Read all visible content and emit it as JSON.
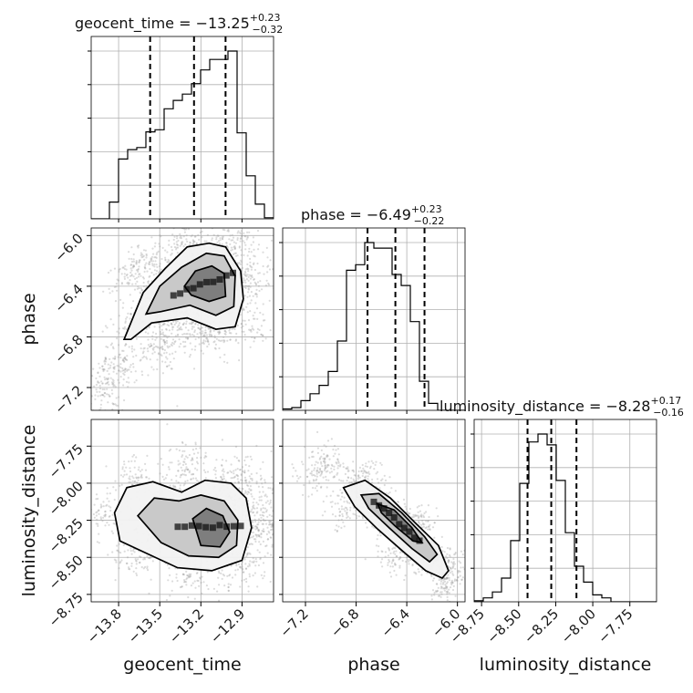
{
  "chart_data": {
    "type": "corner",
    "parameters": [
      "geocent_time",
      "phase",
      "luminosity_distance"
    ],
    "titles": [
      {
        "param": "geocent_time",
        "prefix": "geocent_time = ",
        "median": "−13.25",
        "plus": "+0.23",
        "minus": "−0.32"
      },
      {
        "param": "phase",
        "prefix": "phase = ",
        "median": "−6.49",
        "plus": "+0.23",
        "minus": "−0.22"
      },
      {
        "param": "luminosity_distance",
        "prefix": "luminosity_distance = ",
        "median": "−8.28",
        "plus": "+0.17",
        "minus": "−0.16"
      }
    ],
    "axis_labels": {
      "x": [
        "geocent_time",
        "phase",
        "luminosity_distance"
      ],
      "y": [
        "phase",
        "luminosity_distance"
      ]
    },
    "ranges": {
      "geocent_time": [
        -14.0,
        -12.67
      ],
      "phase": [
        -7.38,
        -5.94
      ],
      "luminosity_distance": [
        -8.8,
        -7.57
      ]
    },
    "ticks": {
      "geocent_time": [
        -13.8,
        -13.5,
        -13.2,
        -12.9
      ],
      "phase": [
        -7.2,
        -6.8,
        -6.4,
        -6.0
      ],
      "luminosity_distance": [
        -8.75,
        -8.5,
        -8.25,
        -8.0,
        -7.75
      ]
    },
    "tick_labels": {
      "geocent_time": [
        "−13.8",
        "−13.5",
        "−13.2",
        "−12.9"
      ],
      "phase": [
        "−7.2",
        "−6.8",
        "−6.4",
        "−6.0"
      ],
      "luminosity_distance": [
        "−8.75",
        "−8.50",
        "−8.25",
        "−8.00",
        "−7.75"
      ]
    },
    "quantiles": {
      "geocent_time": [
        -13.57,
        -13.25,
        -13.02
      ],
      "phase": [
        -6.71,
        -6.49,
        -6.26
      ],
      "luminosity_distance": [
        -8.44,
        -8.28,
        -8.11
      ]
    },
    "histograms": {
      "geocent_time": {
        "edges_range": [
          -14.0,
          -12.67
        ],
        "bins": 20,
        "counts": [
          0,
          0,
          16,
          57,
          66,
          68,
          83,
          85,
          105,
          113,
          119,
          129,
          142,
          152,
          152,
          160,
          82,
          41,
          14,
          1
        ]
      },
      "phase": {
        "edges_range": [
          -7.38,
          -5.94
        ],
        "bins": 20,
        "counts": [
          1,
          2,
          7,
          12,
          18,
          28,
          50,
          101,
          105,
          121,
          117,
          117,
          98,
          90,
          64,
          21,
          5,
          0,
          0,
          0
        ]
      },
      "luminosity_distance": {
        "edges_range": [
          -8.8,
          -7.57
        ],
        "bins": 20,
        "counts": [
          1,
          4,
          10,
          24,
          62,
          120,
          162,
          170,
          159,
          123,
          70,
          36,
          20,
          7,
          4,
          0,
          0,
          0,
          0,
          0
        ]
      }
    },
    "densities": [
      {
        "x": "geocent_time",
        "y": "phase",
        "center": [
          -13.25,
          -6.44
        ],
        "cov": [
          [
            0.058,
            0.022
          ],
          [
            0.022,
            0.058
          ]
        ],
        "scatter_halo": [
          [
            -13.8,
            -7.0
          ],
          [
            -13.7,
            -6.3
          ],
          [
            -13.6,
            -6.2
          ],
          [
            -13.3,
            -6.05
          ],
          [
            -13.0,
            -6.05
          ],
          [
            -12.85,
            -6.35
          ],
          [
            -12.85,
            -6.7
          ],
          [
            -13.1,
            -6.8
          ],
          [
            -13.5,
            -6.9
          ],
          [
            -13.85,
            -7.1
          ],
          [
            -13.9,
            -7.25
          ]
        ],
        "contours": [
          [
            [
              -13.76,
              -6.82
            ],
            [
              -13.62,
              -6.45
            ],
            [
              -13.46,
              -6.26
            ],
            [
              -13.3,
              -6.09
            ],
            [
              -13.14,
              -6.06
            ],
            [
              -13.02,
              -6.09
            ],
            [
              -12.91,
              -6.28
            ],
            [
              -12.89,
              -6.5
            ],
            [
              -12.95,
              -6.72
            ],
            [
              -13.09,
              -6.74
            ],
            [
              -13.3,
              -6.65
            ],
            [
              -13.56,
              -6.69
            ],
            [
              -13.71,
              -6.82
            ]
          ],
          [
            [
              -13.6,
              -6.62
            ],
            [
              -13.5,
              -6.4
            ],
            [
              -13.34,
              -6.25
            ],
            [
              -13.16,
              -6.14
            ],
            [
              -13.03,
              -6.16
            ],
            [
              -12.95,
              -6.32
            ],
            [
              -12.96,
              -6.56
            ],
            [
              -13.09,
              -6.63
            ],
            [
              -13.28,
              -6.55
            ],
            [
              -13.49,
              -6.6
            ],
            [
              -13.6,
              -6.62
            ]
          ],
          [
            [
              -13.32,
              -6.4
            ],
            [
              -13.24,
              -6.28
            ],
            [
              -13.12,
              -6.24
            ],
            [
              -13.03,
              -6.3
            ],
            [
              -13.02,
              -6.48
            ],
            [
              -13.14,
              -6.52
            ],
            [
              -13.27,
              -6.47
            ],
            [
              -13.32,
              -6.4
            ]
          ]
        ]
      },
      {
        "x": "geocent_time",
        "y": "luminosity_distance",
        "center": [
          -13.15,
          -8.25
        ],
        "cov": [
          [
            0.065,
            0.0
          ],
          [
            0.0,
            0.032
          ]
        ],
        "scatter_halo": [
          [
            -13.9,
            -8.2
          ],
          [
            -13.7,
            -7.95
          ],
          [
            -13.3,
            -7.85
          ],
          [
            -12.9,
            -7.95
          ],
          [
            -12.75,
            -8.25
          ],
          [
            -12.9,
            -8.55
          ],
          [
            -13.3,
            -8.62
          ],
          [
            -13.7,
            -8.5
          ]
        ],
        "contours": [
          [
            [
              -13.83,
              -8.2
            ],
            [
              -13.74,
              -8.03
            ],
            [
              -13.55,
              -7.99
            ],
            [
              -13.34,
              -8.06
            ],
            [
              -13.17,
              -7.98
            ],
            [
              -12.98,
              -8.0
            ],
            [
              -12.87,
              -8.1
            ],
            [
              -12.83,
              -8.3
            ],
            [
              -12.9,
              -8.52
            ],
            [
              -13.12,
              -8.59
            ],
            [
              -13.37,
              -8.57
            ],
            [
              -13.58,
              -8.48
            ],
            [
              -13.79,
              -8.39
            ],
            [
              -13.83,
              -8.2
            ]
          ],
          [
            [
              -13.66,
              -8.22
            ],
            [
              -13.54,
              -8.1
            ],
            [
              -13.36,
              -8.12
            ],
            [
              -13.2,
              -8.08
            ],
            [
              -13.03,
              -8.12
            ],
            [
              -12.93,
              -8.25
            ],
            [
              -12.94,
              -8.42
            ],
            [
              -13.07,
              -8.5
            ],
            [
              -13.29,
              -8.49
            ],
            [
              -13.49,
              -8.4
            ],
            [
              -13.66,
              -8.22
            ]
          ],
          [
            [
              -13.26,
              -8.24
            ],
            [
              -13.16,
              -8.17
            ],
            [
              -13.04,
              -8.22
            ],
            [
              -12.99,
              -8.33
            ],
            [
              -13.06,
              -8.43
            ],
            [
              -13.2,
              -8.42
            ],
            [
              -13.26,
              -8.24
            ]
          ]
        ]
      },
      {
        "x": "phase",
        "y": "luminosity_distance",
        "center": [
          -6.46,
          -8.3
        ],
        "cov": [
          [
            0.04,
            -0.03
          ],
          [
            -0.03,
            0.028
          ]
        ],
        "scatter_halo": [
          [
            -7.05,
            -7.85
          ],
          [
            -6.7,
            -7.95
          ],
          [
            -6.3,
            -8.25
          ],
          [
            -6.05,
            -8.55
          ],
          [
            -6.1,
            -8.7
          ],
          [
            -6.5,
            -8.5
          ],
          [
            -6.9,
            -8.2
          ],
          [
            -7.15,
            -7.95
          ]
        ],
        "contours": [
          [
            [
              -6.9,
              -8.03
            ],
            [
              -6.73,
              -7.98
            ],
            [
              -6.53,
              -8.1
            ],
            [
              -6.33,
              -8.27
            ],
            [
              -6.15,
              -8.42
            ],
            [
              -6.07,
              -8.59
            ],
            [
              -6.12,
              -8.64
            ],
            [
              -6.25,
              -8.59
            ],
            [
              -6.43,
              -8.46
            ],
            [
              -6.63,
              -8.31
            ],
            [
              -6.81,
              -8.16
            ],
            [
              -6.9,
              -8.03
            ]
          ],
          [
            [
              -6.76,
              -8.08
            ],
            [
              -6.62,
              -8.07
            ],
            [
              -6.44,
              -8.2
            ],
            [
              -6.26,
              -8.36
            ],
            [
              -6.16,
              -8.48
            ],
            [
              -6.22,
              -8.53
            ],
            [
              -6.36,
              -8.44
            ],
            [
              -6.54,
              -8.3
            ],
            [
              -6.7,
              -8.17
            ],
            [
              -6.76,
              -8.08
            ]
          ],
          [
            [
              -6.63,
              -8.14
            ],
            [
              -6.5,
              -8.18
            ],
            [
              -6.36,
              -8.3
            ],
            [
              -6.28,
              -8.4
            ],
            [
              -6.35,
              -8.39
            ],
            [
              -6.49,
              -8.29
            ],
            [
              -6.6,
              -8.2
            ],
            [
              -6.63,
              -8.14
            ]
          ]
        ]
      }
    ]
  }
}
